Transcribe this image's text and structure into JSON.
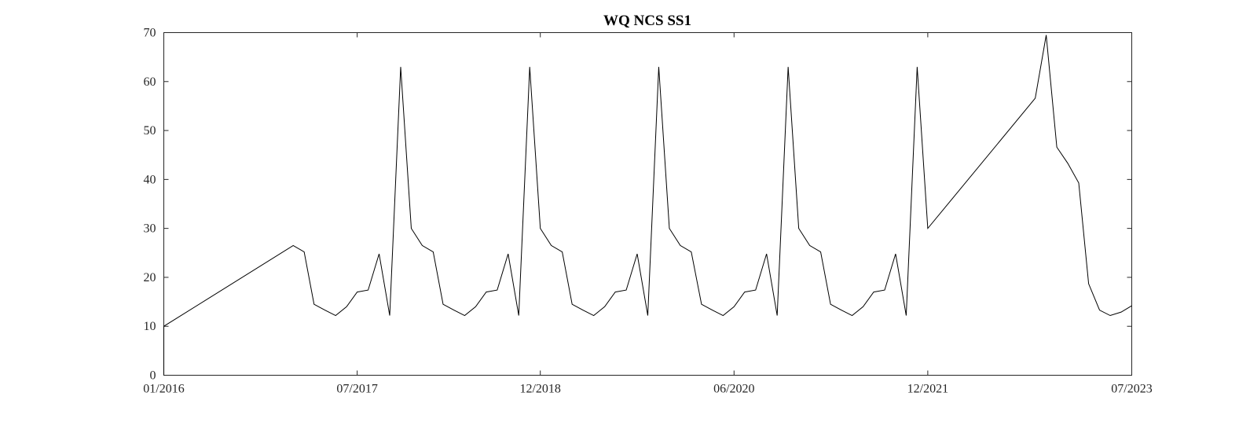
{
  "chart_data": {
    "type": "line",
    "title": "WQ NCS SS1",
    "xlabel": "",
    "ylabel": "",
    "x_axis_type": "date",
    "xlim": [
      "2016-01-01",
      "2023-07-01"
    ],
    "ylim": [
      0,
      70
    ],
    "x_ticks": [
      {
        "date": "2016-01-01",
        "label": "01/2016"
      },
      {
        "date": "2017-07-01",
        "label": "07/2017"
      },
      {
        "date": "2018-12-01",
        "label": "12/2018"
      },
      {
        "date": "2020-06-01",
        "label": "06/2020"
      },
      {
        "date": "2021-12-01",
        "label": "12/2021"
      },
      {
        "date": "2023-07-01",
        "label": "07/2023"
      }
    ],
    "y_ticks": [
      0,
      10,
      20,
      30,
      40,
      50,
      60,
      70
    ],
    "grid": false,
    "legend": "none",
    "series_color": "#000000",
    "series": [
      {
        "x": [
          "2016-01-01",
          "2016-01-01",
          "2017-01-01",
          "2017-02-01",
          "2017-03-01",
          "2017-04-01",
          "2017-05-01",
          "2017-06-01",
          "2017-07-01",
          "2017-08-01",
          "2017-09-01",
          "2017-10-01",
          "2017-11-01",
          "2017-12-01",
          "2018-01-01",
          "2018-02-01",
          "2018-03-01",
          "2018-04-01",
          "2018-05-01",
          "2018-06-01",
          "2018-07-01",
          "2018-08-01",
          "2018-09-01",
          "2018-10-01",
          "2018-11-01",
          "2018-12-01",
          "2019-01-01",
          "2019-02-01",
          "2019-03-01",
          "2019-04-01",
          "2019-05-01",
          "2019-06-01",
          "2019-07-01",
          "2019-08-01",
          "2019-09-01",
          "2019-10-01",
          "2019-11-01",
          "2019-12-01",
          "2020-01-01",
          "2020-02-01",
          "2020-03-01",
          "2020-04-01",
          "2020-05-01",
          "2020-06-01",
          "2020-07-01",
          "2020-08-01",
          "2020-09-01",
          "2020-10-01",
          "2020-11-01",
          "2020-12-01",
          "2021-01-01",
          "2021-02-01",
          "2021-03-01",
          "2021-04-01",
          "2021-05-01",
          "2021-06-01",
          "2021-07-01",
          "2021-08-01",
          "2021-09-01",
          "2021-10-01",
          "2021-11-01",
          "2021-12-01",
          "2022-10-01",
          "2022-11-01",
          "2022-12-01",
          "2023-01-01",
          "2023-02-01",
          "2023-03-01",
          "2023-04-01",
          "2023-05-01",
          "2023-06-01",
          "2023-07-01"
        ],
        "y": [
          0,
          10,
          26.5,
          25.2,
          14.5,
          13.3,
          12.2,
          14.0,
          17.0,
          17.4,
          24.8,
          12.2,
          63.0,
          30.0,
          26.5,
          25.2,
          14.5,
          13.3,
          12.2,
          14.0,
          17.0,
          17.4,
          24.8,
          12.2,
          63.0,
          30.0,
          26.5,
          25.2,
          14.5,
          13.3,
          12.2,
          14.0,
          17.0,
          17.4,
          24.8,
          12.2,
          63.0,
          30.0,
          26.5,
          25.2,
          14.5,
          13.3,
          12.2,
          14.0,
          17.0,
          17.4,
          24.8,
          12.2,
          63.0,
          30.0,
          26.5,
          25.2,
          14.5,
          13.3,
          12.2,
          14.0,
          17.0,
          17.4,
          24.8,
          12.2,
          63.0,
          30.0,
          56.6,
          69.5,
          46.6,
          43.3,
          39.3,
          18.7,
          13.3,
          12.2,
          12.9,
          14.2
        ]
      }
    ]
  }
}
